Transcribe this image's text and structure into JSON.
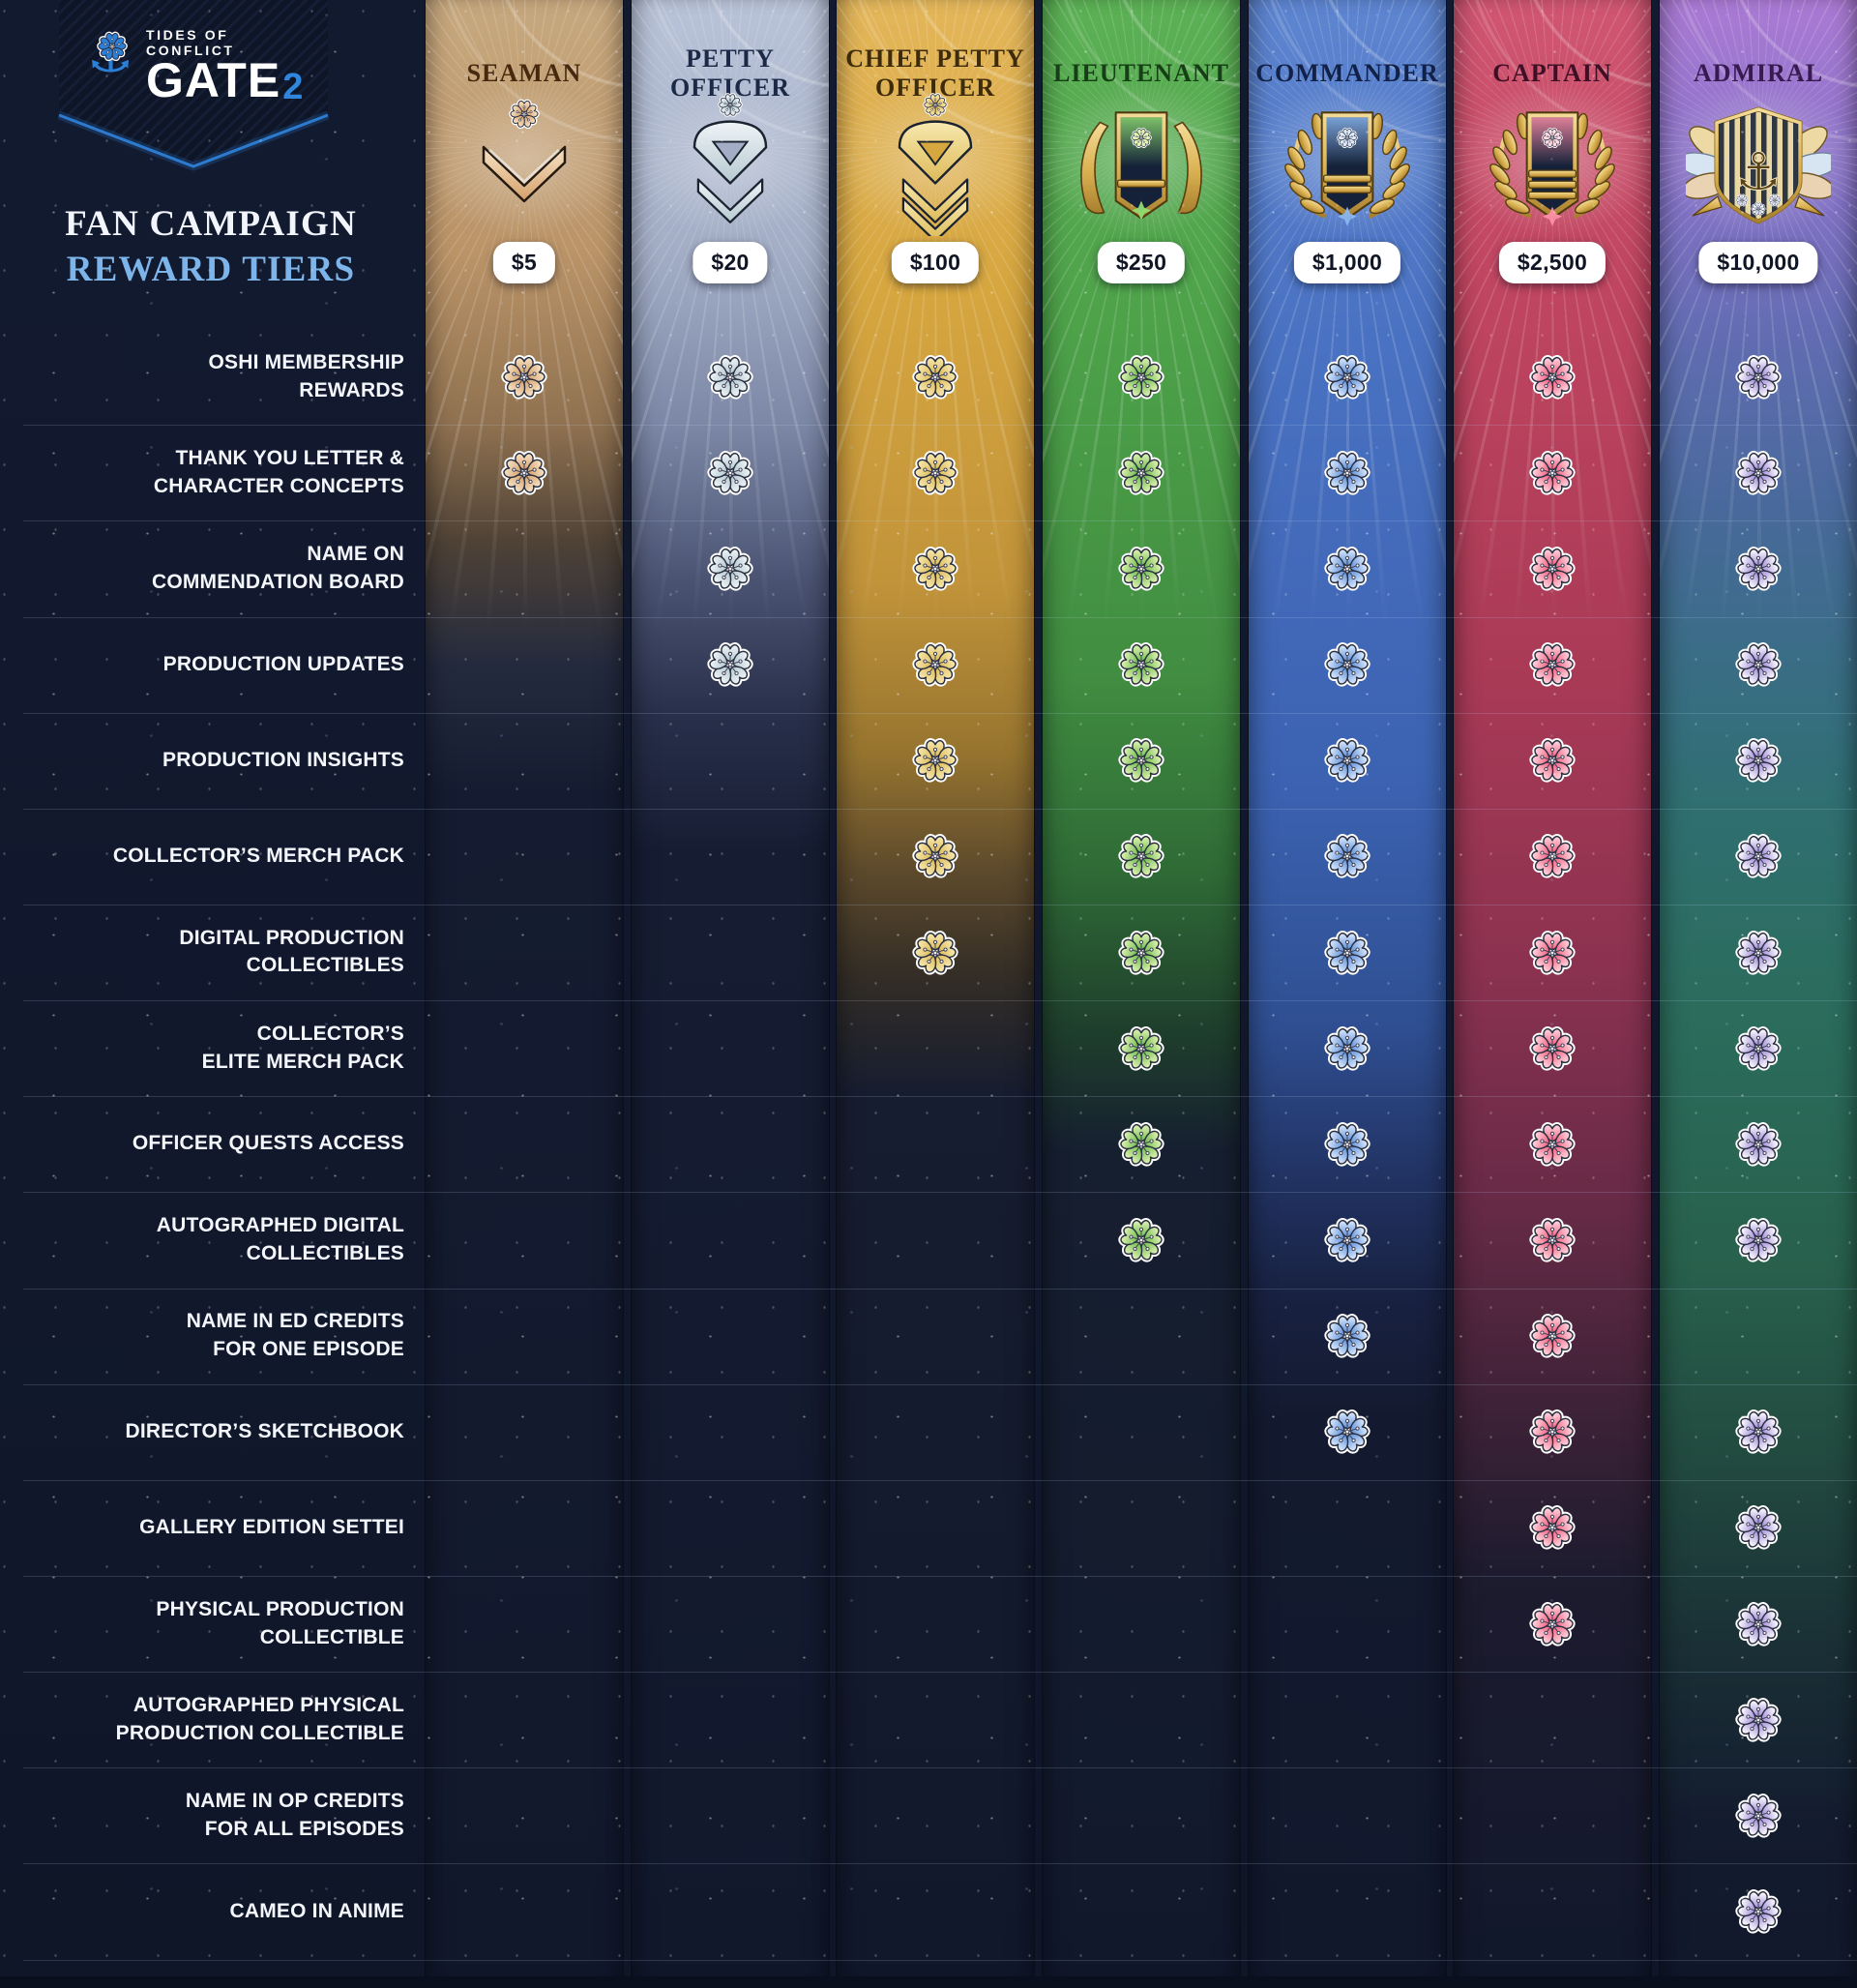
{
  "logo": {
    "series_title": "TIDES OF CONFLICT",
    "game_title": "GATE",
    "game_number": "2",
    "icon": "anchor-sakura-icon"
  },
  "page": {
    "title_line1": "FAN CAMPAIGN",
    "title_line2": "REWARD TIERS"
  },
  "table": {
    "tiers": [
      {
        "id": "seaman",
        "name": "SEAMAN",
        "price": "$5",
        "insignia_icon": "seaman-chevron-icon",
        "colors": {
          "title_text": "#46290f",
          "petal_light": "#f7e3c6",
          "petal_deep": "#d5a06b",
          "badge_glow": "#ecd2ae",
          "column_gradient": [
            [
              0,
              "#c7a87e"
            ],
            [
              260,
              "#bb9468"
            ],
            [
              440,
              "#8f7150"
            ],
            [
              560,
              "#4f4236"
            ],
            [
              690,
              "#232a3e"
            ],
            [
              820,
              "#151c31"
            ],
            [
              2045,
              "#11182c"
            ]
          ]
        }
      },
      {
        "id": "petty-officer",
        "name": "PETTY\nOFFICER",
        "price": "$20",
        "insignia_icon": "petty-officer-chevron-icon",
        "colors": {
          "title_text": "#1b2946",
          "petal_light": "#eef4f6",
          "petal_deep": "#b6c9d2",
          "badge_glow": "#dfe9ee",
          "column_gradient": [
            [
              0,
              "#b9c3d8"
            ],
            [
              260,
              "#a3aec6"
            ],
            [
              440,
              "#7c87a6"
            ],
            [
              600,
              "#4a5372"
            ],
            [
              740,
              "#282f4a"
            ],
            [
              880,
              "#161d33"
            ],
            [
              2045,
              "#11182c"
            ]
          ]
        }
      },
      {
        "id": "chief-petty-officer",
        "name": "CHIEF PETTY\nOFFICER",
        "price": "$100",
        "insignia_icon": "chief-petty-officer-chevron-icon",
        "colors": {
          "title_text": "#3e2b0a",
          "petal_light": "#f8e9b0",
          "petal_deep": "#dcba58",
          "badge_glow": "#f3dd9a",
          "column_gradient": [
            [
              0,
              "#e3b65a"
            ],
            [
              300,
              "#d6a63f"
            ],
            [
              600,
              "#c2943a"
            ],
            [
              780,
              "#96742f"
            ],
            [
              900,
              "#5d4a2c"
            ],
            [
              1010,
              "#332d26"
            ],
            [
              1130,
              "#171d30"
            ],
            [
              2045,
              "#11182c"
            ]
          ]
        }
      },
      {
        "id": "lieutenant",
        "name": "LIEUTENANT",
        "price": "$250",
        "insignia_icon": "lieutenant-crest-icon",
        "colors": {
          "title_text": "#153f14",
          "petal_light": "#e2f3b4",
          "petal_deep": "#6cbb4e",
          "badge_glow": "#8fdc72",
          "column_gradient": [
            [
              0,
              "#5cb055"
            ],
            [
              350,
              "#4da149"
            ],
            [
              700,
              "#418d41"
            ],
            [
              900,
              "#2f6b36"
            ],
            [
              1060,
              "#1f402c"
            ],
            [
              1190,
              "#161f30"
            ],
            [
              2045,
              "#11182c"
            ]
          ]
        }
      },
      {
        "id": "commander",
        "name": "COMMANDER",
        "price": "$1,000",
        "insignia_icon": "commander-crest-icon",
        "colors": {
          "title_text": "#122148",
          "petal_light": "#ddebfd",
          "petal_deep": "#5c8ed9",
          "badge_glow": "#8ab6f0",
          "column_gradient": [
            [
              0,
              "#5e85d0"
            ],
            [
              350,
              "#4a72c2"
            ],
            [
              800,
              "#3c63b2"
            ],
            [
              1060,
              "#2f4f92"
            ],
            [
              1210,
              "#223465"
            ],
            [
              1340,
              "#182141"
            ],
            [
              1470,
              "#131a2f"
            ],
            [
              2045,
              "#11182c"
            ]
          ]
        }
      },
      {
        "id": "captain",
        "name": "CAPTAIN",
        "price": "$2,500",
        "insignia_icon": "captain-crest-icon",
        "colors": {
          "title_text": "#3f0f26",
          "petal_light": "#ffd9e1",
          "petal_deep": "#f25f80",
          "badge_glow": "#ff8fa8",
          "column_gradient": [
            [
              0,
              "#d05672"
            ],
            [
              300,
              "#c04560"
            ],
            [
              700,
              "#a93a56"
            ],
            [
              1000,
              "#8b3250"
            ],
            [
              1250,
              "#662a46"
            ],
            [
              1450,
              "#3f2238"
            ],
            [
              1630,
              "#1d1b2e"
            ],
            [
              2045,
              "#11182c"
            ]
          ]
        }
      },
      {
        "id": "admiral",
        "name": "ADMIRAL",
        "price": "$10,000",
        "insignia_icon": "admiral-crest-icon",
        "colors": {
          "title_text": "#371b50",
          "petal_light": "#ffffff",
          "petal_deep": "#a08ad8",
          "badge_glow": "#e9ddff",
          "column_gradient": [
            [
              0,
              "#ab7ad4"
            ],
            [
              200,
              "#8472c6"
            ],
            [
              360,
              "#5f6cb0"
            ],
            [
              520,
              "#49699c"
            ],
            [
              680,
              "#3a6d86"
            ],
            [
              840,
              "#2f6f70"
            ],
            [
              1050,
              "#2b6c5c"
            ],
            [
              1300,
              "#28614d"
            ],
            [
              1500,
              "#224b40"
            ],
            [
              1700,
              "#1a3036"
            ],
            [
              1890,
              "#131b2e"
            ],
            [
              2045,
              "#11182c"
            ]
          ]
        }
      }
    ],
    "rewards": [
      {
        "label": "OSHI MEMBERSHIP\nREWARDS",
        "included": [
          1,
          1,
          1,
          1,
          1,
          1,
          1
        ]
      },
      {
        "label": "THANK YOU LETTER &\nCHARACTER CONCEPTS",
        "included": [
          1,
          1,
          1,
          1,
          1,
          1,
          1
        ]
      },
      {
        "label": "NAME ON\nCOMMENDATION BOARD",
        "included": [
          0,
          1,
          1,
          1,
          1,
          1,
          1
        ]
      },
      {
        "label": "PRODUCTION UPDATES",
        "included": [
          0,
          1,
          1,
          1,
          1,
          1,
          1
        ]
      },
      {
        "label": "PRODUCTION INSIGHTS",
        "included": [
          0,
          0,
          1,
          1,
          1,
          1,
          1
        ]
      },
      {
        "label": "COLLECTOR’S MERCH PACK",
        "included": [
          0,
          0,
          1,
          1,
          1,
          1,
          1
        ]
      },
      {
        "label": "DIGITAL PRODUCTION\nCOLLECTIBLES",
        "included": [
          0,
          0,
          1,
          1,
          1,
          1,
          1
        ]
      },
      {
        "label": "COLLECTOR’S\nELITE MERCH PACK",
        "included": [
          0,
          0,
          0,
          1,
          1,
          1,
          1
        ]
      },
      {
        "label": "OFFICER QUESTS ACCESS",
        "included": [
          0,
          0,
          0,
          1,
          1,
          1,
          1
        ]
      },
      {
        "label": "AUTOGRAPHED DIGITAL\nCOLLECTIBLES",
        "included": [
          0,
          0,
          0,
          1,
          1,
          1,
          1
        ]
      },
      {
        "label": "NAME IN ED CREDITS\nFOR ONE EPISODE",
        "included": [
          0,
          0,
          0,
          0,
          1,
          1,
          0
        ]
      },
      {
        "label": "DIRECTOR’S SKETCHBOOK",
        "included": [
          0,
          0,
          0,
          0,
          1,
          1,
          1
        ]
      },
      {
        "label": "GALLERY EDITION SETTEI",
        "included": [
          0,
          0,
          0,
          0,
          0,
          1,
          1
        ]
      },
      {
        "label": "PHYSICAL PRODUCTION\nCOLLECTIBLE",
        "included": [
          0,
          0,
          0,
          0,
          0,
          1,
          1
        ]
      },
      {
        "label": "AUTOGRAPHED PHYSICAL\nPRODUCTION COLLECTIBLE",
        "included": [
          0,
          0,
          0,
          0,
          0,
          0,
          1
        ]
      },
      {
        "label": "NAME IN OP CREDITS\nFOR ALL EPISODES",
        "included": [
          0,
          0,
          0,
          0,
          0,
          0,
          1
        ]
      },
      {
        "label": "CAMEO IN ANIME",
        "included": [
          0,
          0,
          0,
          0,
          0,
          0,
          1
        ]
      }
    ]
  }
}
